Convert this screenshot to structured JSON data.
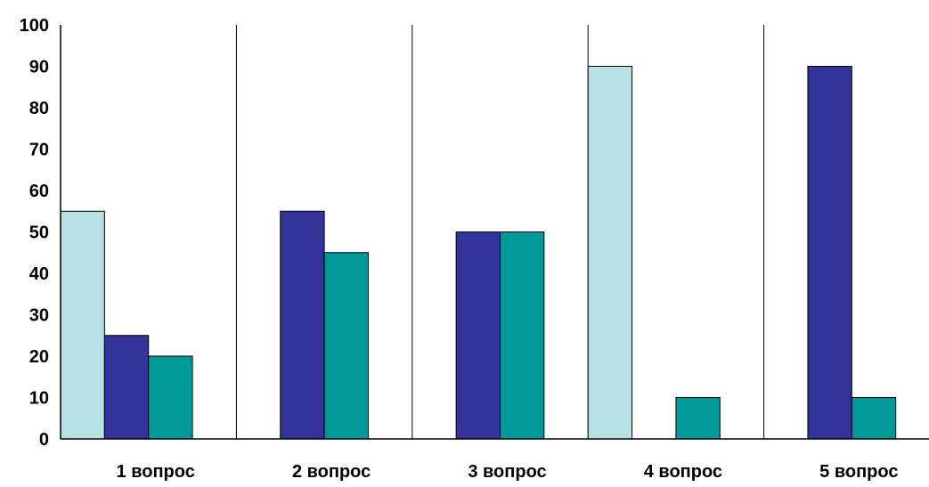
{
  "chart_data": {
    "type": "bar",
    "categories": [
      "1 вопрос",
      "2 вопрос",
      "3 вопрос",
      "4 вопрос",
      "5 вопрос"
    ],
    "series": [
      {
        "color": "#b7e0e2",
        "values": [
          55,
          0,
          0,
          90,
          0
        ]
      },
      {
        "color": "#333399",
        "values": [
          25,
          55,
          50,
          0,
          90
        ]
      },
      {
        "color": "#009999",
        "values": [
          20,
          45,
          50,
          10,
          10
        ]
      }
    ],
    "yticks": [
      "0",
      "10",
      "20",
      "30",
      "40",
      "50",
      "60",
      "70",
      "80",
      "90",
      "100"
    ],
    "ylim": [
      0,
      100
    ],
    "title": "",
    "xlabel": "",
    "ylabel": "",
    "legend": false,
    "category_separators": true
  }
}
